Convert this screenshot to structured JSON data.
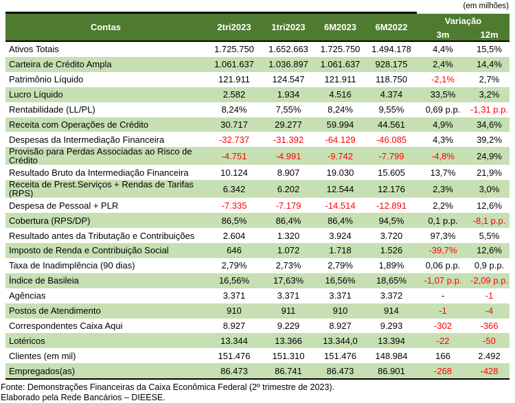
{
  "note": "(em milhões)",
  "colors": {
    "header_bg": "#4e7b2f",
    "row_alt_bg": "#c6e0b4",
    "negative": "#ff0000"
  },
  "table": {
    "header": {
      "contas": "Contas",
      "periods": [
        "2tri2023",
        "1tri2023",
        "6M2023",
        "6M2022"
      ],
      "variacao": "Variação",
      "variacao_sub": [
        "3m",
        "12m"
      ],
      "col_keys": [
        "2tri2023",
        "1tri2023",
        "6m2023",
        "6m2022",
        "var-3m",
        "var-12m"
      ]
    },
    "rows": [
      {
        "conta": "Ativos Totais",
        "values": [
          "1.725.750",
          "1.652.663",
          "1.725.750",
          "1.494.178",
          "4,4%",
          "15,5%"
        ]
      },
      {
        "conta": "Carteira de Crédito Ampla",
        "values": [
          "1.061.637",
          "1.036.897",
          "1.061.637",
          "928.175",
          "2,4%",
          "14,4%"
        ]
      },
      {
        "conta": "Patrimônio Líquido",
        "values": [
          "121.911",
          "124.547",
          "121.911",
          "118.750",
          "-2,1%",
          "2,7%"
        ]
      },
      {
        "conta": "Lucro Líquido",
        "values": [
          "2.582",
          "1.934",
          "4.516",
          "4.374",
          "33,5%",
          "3,2%"
        ]
      },
      {
        "conta": "Rentabilidade (LL/PL)",
        "values": [
          "8,24%",
          "7,55%",
          "8,24%",
          "9,55%",
          "0,69 p.p.",
          "-1,31 p.p."
        ]
      },
      {
        "conta": "Receita com Operações de Crédito",
        "values": [
          "30.717",
          "29.277",
          "59.994",
          "44.561",
          "4,9%",
          "34,6%"
        ]
      },
      {
        "conta": "Despesas da Intermediação Financeira",
        "values": [
          "-32.737",
          "-31.392",
          "-64.129",
          "-46.085",
          "4,3%",
          "39,2%"
        ]
      },
      {
        "conta": "Provisão para Perdas Associadas ao Risco de Crédito",
        "values": [
          "-4.751",
          "-4.991",
          "-9.742",
          "-7.799",
          "-4,8%",
          "24,9%"
        ]
      },
      {
        "conta": "Resultado Bruto da Intermediação Financeira",
        "values": [
          "10.124",
          "8.907",
          "19.030",
          "15.605",
          "13,7%",
          "21,9%"
        ]
      },
      {
        "conta": "Receita de Prest.Serviços + Rendas de Tarifas (RPS)",
        "values": [
          "6.342",
          "6.202",
          "12.544",
          "12.176",
          "2,3%",
          "3,0%"
        ]
      },
      {
        "conta": "Despesa de Pessoal + PLR",
        "values": [
          "-7.335",
          "-7.179",
          "-14.514",
          "-12.891",
          "2,2%",
          "12,6%"
        ]
      },
      {
        "conta": "Cobertura (RPS/DP)",
        "values": [
          "86,5%",
          "86,4%",
          "86,4%",
          "94,5%",
          "0,1 p.p.",
          "-8,1 p.p."
        ]
      },
      {
        "conta": "Resultado antes da Tributação e Contribuições",
        "values": [
          "2.604",
          "1.320",
          "3.924",
          "3.720",
          "97,3%",
          "5,5%"
        ]
      },
      {
        "conta": "Imposto de Renda e Contribuição Social",
        "values": [
          "646",
          "1.072",
          "1.718",
          "1.526",
          "-39,7%",
          "12,6%"
        ]
      },
      {
        "conta": "Taxa de Inadimplência (90 dias)",
        "values": [
          "2,79%",
          "2,73%",
          "2,79%",
          "1,89%",
          "0,06 p.p.",
          "0,9 p.p."
        ]
      },
      {
        "conta": "Índice de Basileia",
        "values": [
          "16,56%",
          "17,63%",
          "16,56%",
          "18,65%",
          "-1,07 p.p.",
          "-2,09 p.p."
        ]
      },
      {
        "conta": "Agências",
        "values": [
          "3.371",
          "3.371",
          "3.371",
          "3.372",
          "-",
          "-1"
        ]
      },
      {
        "conta": "Postos de Atendimento",
        "values": [
          "910",
          "911",
          "910",
          "914",
          "-1",
          "-4"
        ]
      },
      {
        "conta": "Correspondentes Caixa Aqui",
        "values": [
          "8.927",
          "9.229",
          "8.927",
          "9.293",
          "-302",
          "-366"
        ]
      },
      {
        "conta": "Lotéricos",
        "values": [
          "13.344",
          "13.366",
          "13.344,0",
          "13.394",
          "-22",
          "-50"
        ]
      },
      {
        "conta": "Clientes (em mil)",
        "values": [
          "151.476",
          "151.310",
          "151.476",
          "148.984",
          "166",
          "2.492"
        ]
      },
      {
        "conta": "Empregados(as)",
        "values": [
          "86.473",
          "86.741",
          "86.473",
          "86.901",
          "-268",
          "-428"
        ]
      }
    ]
  },
  "footer": {
    "source": "Fonte: Demonstrações Financeiras da Caixa Econômica Federal (2º trimestre de 2023).",
    "elaboration": "Elaborado pela Rede Bancários – DIEESE."
  }
}
